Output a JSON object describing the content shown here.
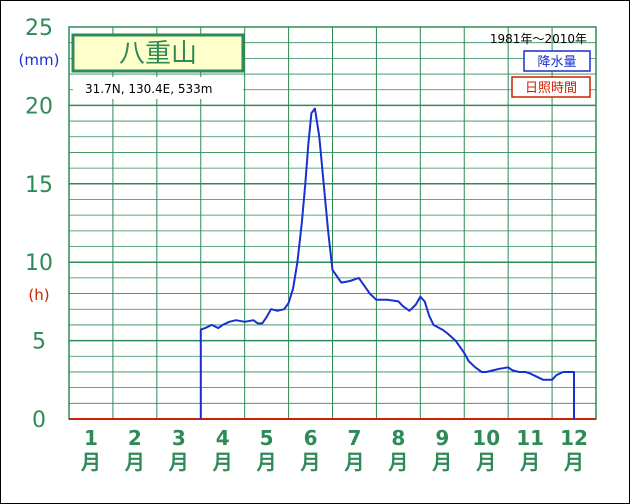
{
  "chart_data": {
    "type": "line",
    "title": "八重山",
    "subtitle": "31.7N,  130.4E,  533m",
    "period": "1981年～2010年",
    "ylabel_left": "(mm)",
    "ylabel_right": "(h)",
    "ylim": [
      0,
      25
    ],
    "yticks": [
      "0",
      "5",
      "10",
      "15",
      "20",
      "25"
    ],
    "categories": [
      {
        "num": "1",
        "unit": "月"
      },
      {
        "num": "2",
        "unit": "月"
      },
      {
        "num": "3",
        "unit": "月"
      },
      {
        "num": "4",
        "unit": "月"
      },
      {
        "num": "5",
        "unit": "月"
      },
      {
        "num": "6",
        "unit": "月"
      },
      {
        "num": "7",
        "unit": "月"
      },
      {
        "num": "8",
        "unit": "月"
      },
      {
        "num": "9",
        "unit": "月"
      },
      {
        "num": "10",
        "unit": "月"
      },
      {
        "num": "11",
        "unit": "月"
      },
      {
        "num": "12",
        "unit": "月"
      }
    ],
    "grid": true,
    "legend_position": "top-right",
    "series": [
      {
        "name": "降水量",
        "color": "#1a2fd0",
        "x": [
          3.5,
          3.5,
          3.6,
          3.75,
          3.9,
          4.0,
          4.15,
          4.3,
          4.5,
          4.7,
          4.8,
          4.9,
          5.0,
          5.1,
          5.25,
          5.4,
          5.5,
          5.6,
          5.7,
          5.8,
          5.88,
          5.95,
          6.02,
          6.1,
          6.2,
          6.3,
          6.4,
          6.5,
          6.7,
          6.9,
          7.0,
          7.1,
          7.2,
          7.35,
          7.5,
          7.75,
          8.0,
          8.1,
          8.25,
          8.4,
          8.5,
          8.6,
          8.7,
          8.8,
          9.0,
          9.1,
          9.3,
          9.5,
          9.6,
          9.75,
          9.9,
          10.0,
          10.15,
          10.3,
          10.5,
          10.6,
          10.75,
          10.9,
          11.0,
          11.15,
          11.3,
          11.5,
          11.6,
          11.75,
          12.0,
          12.0
        ],
        "y": [
          0,
          5.7,
          5.8,
          6.0,
          5.8,
          6.0,
          6.2,
          6.3,
          6.2,
          6.3,
          6.1,
          6.1,
          6.5,
          7.0,
          6.9,
          7.0,
          7.4,
          8.3,
          10.0,
          12.5,
          15.0,
          17.5,
          19.5,
          19.8,
          18.0,
          15.0,
          12.0,
          9.5,
          8.7,
          8.8,
          8.9,
          9.0,
          8.6,
          8.0,
          7.6,
          7.6,
          7.5,
          7.2,
          6.9,
          7.3,
          7.8,
          7.5,
          6.6,
          6.0,
          5.7,
          5.5,
          5.0,
          4.2,
          3.7,
          3.3,
          3.0,
          3.0,
          3.1,
          3.2,
          3.3,
          3.1,
          3.0,
          3.0,
          2.9,
          2.7,
          2.5,
          2.5,
          2.8,
          3.0,
          3.0,
          0
        ]
      },
      {
        "name": "日照時間",
        "color": "#cc2200",
        "x": [
          0.5,
          12.5
        ],
        "y": [
          0,
          0
        ]
      }
    ]
  }
}
